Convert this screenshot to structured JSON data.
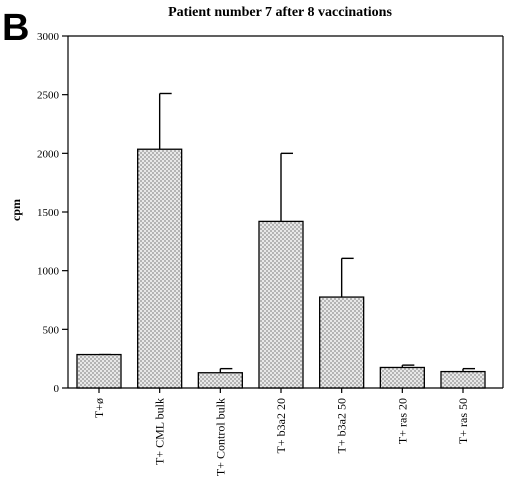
{
  "panel_label": "B",
  "chart_data": {
    "type": "bar",
    "title": "Patient number 7 after 8 vaccinations",
    "xlabel": "",
    "ylabel": "cpm",
    "ylim": [
      0,
      3000
    ],
    "yticks": [
      0,
      500,
      1000,
      1500,
      2000,
      2500,
      3000
    ],
    "categories": [
      "T+ø",
      "T+ CML bulk",
      "T+ Control bulk",
      "T+ b3a2 20",
      "T+ b3a2 50",
      "T+ ras 20",
      "T+ ras 50"
    ],
    "values": [
      285,
      2035,
      130,
      1420,
      775,
      175,
      140
    ],
    "error_upper": [
      285,
      2510,
      165,
      2000,
      1105,
      195,
      165
    ],
    "bar_fill": "stippled light gray",
    "grid": false,
    "legend": "none"
  }
}
